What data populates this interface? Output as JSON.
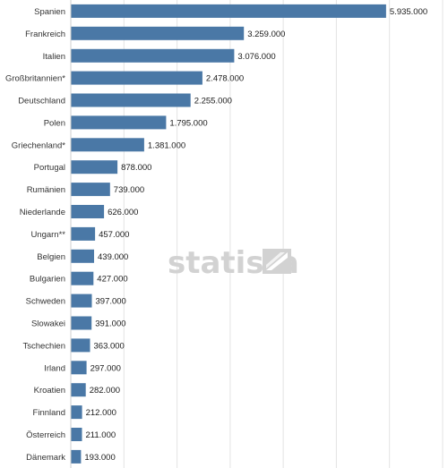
{
  "watermark": {
    "text": "statista"
  },
  "colors": {
    "bar": "#4a78a6",
    "grid": "#e3e3e3",
    "watermark": "#d2d2d2"
  },
  "chart_data": {
    "type": "bar",
    "orientation": "horizontal",
    "categories": [
      "Spanien",
      "Frankreich",
      "Italien",
      "Großbritannien*",
      "Deutschland",
      "Polen",
      "Griechenland*",
      "Portugal",
      "Rumänien",
      "Niederlande",
      "Ungarn**",
      "Belgien",
      "Bulgarien",
      "Schweden",
      "Slowakei",
      "Tschechien",
      "Irland",
      "Kroatien",
      "Finnland",
      "Österreich",
      "Dänemark"
    ],
    "values": [
      5935000,
      3259000,
      3076000,
      2478000,
      2255000,
      1795000,
      1381000,
      878000,
      739000,
      626000,
      457000,
      439000,
      427000,
      397000,
      391000,
      363000,
      297000,
      282000,
      212000,
      211000,
      193000
    ],
    "value_labels": [
      "5.935.000",
      "3.259.000",
      "3.076.000",
      "2.478.000",
      "2.255.000",
      "1.795.000",
      "1.381.000",
      "878.000",
      "739.000",
      "626.000",
      "457.000",
      "439.000",
      "427.000",
      "397.000",
      "391.000",
      "363.000",
      "297.000",
      "282.000",
      "212.000",
      "211.000",
      "193.000"
    ],
    "xlim": [
      0,
      7000000
    ],
    "grid": true,
    "legend": "none"
  }
}
